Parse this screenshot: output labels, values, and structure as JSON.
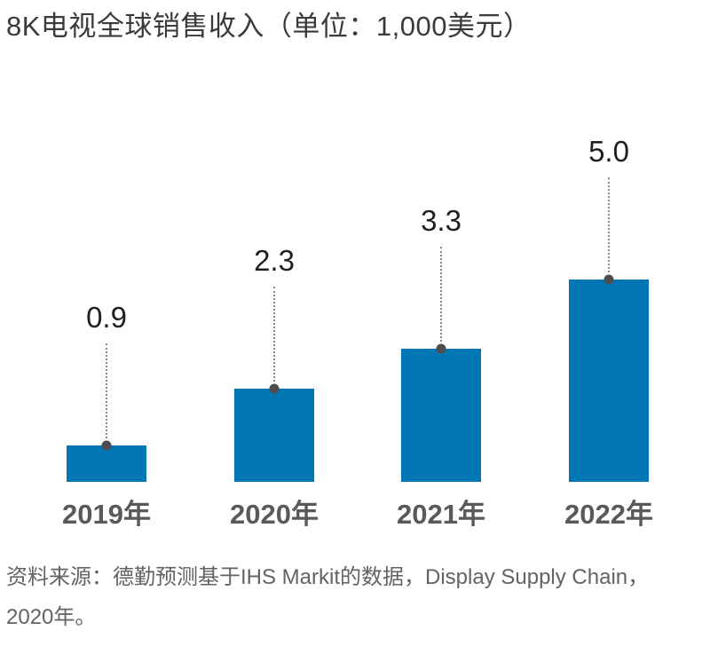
{
  "title": "8K电视全球销售收入（单位：1,000美元）",
  "source": "资料来源：德勤预测基于IHS Markit的数据，Display Supply Chain，2020年。",
  "colors": {
    "bar": "#0077b4",
    "dot": "#4d4d4d",
    "leader_line": "#8a8a8a",
    "value_label": "#1f1f1f",
    "axis_label": "#595959",
    "title": "#3a3a3a",
    "source": "#636363",
    "background": "#ffffff"
  },
  "chart_data": {
    "type": "bar",
    "title": "8K电视全球销售收入（单位：1,000美元）",
    "categories": [
      "2019年",
      "2020年",
      "2021年",
      "2022年"
    ],
    "values": [
      0.9,
      2.3,
      3.3,
      5.0
    ],
    "value_labels": [
      "0.9",
      "2.3",
      "3.3",
      "5.0"
    ],
    "series_name": "8K电视全球销售收入",
    "unit": "1,000美元",
    "xlabel": "",
    "ylabel": "",
    "ylim": [
      0,
      5.5
    ],
    "grid": false,
    "legend": "none",
    "axis_lines": "none",
    "annotations": "每个柱顶有一个圆点，虚线向上连接数值标签",
    "source": "资料来源：德勤预测基于IHS Markit的数据，Display Supply Chain，2020年。"
  }
}
